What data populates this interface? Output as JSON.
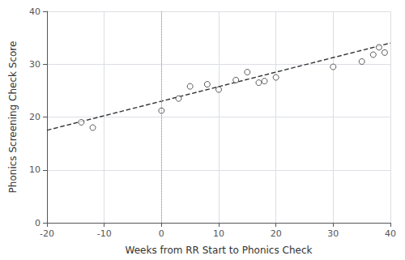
{
  "chart_data": {
    "type": "scatter",
    "xlabel": "Weeks from RR Start to Phonics Check",
    "ylabel": "Phonics Screening Check Score",
    "series": [
      {
        "type": "scatter",
        "marker": "open_circle",
        "color": "#333333",
        "x": [
          -14,
          -12,
          0,
          3,
          5,
          8,
          10,
          13,
          15,
          17,
          18,
          20,
          30,
          35,
          37,
          38,
          39
        ],
        "values": [
          19.0,
          18.0,
          21.2,
          23.5,
          25.8,
          26.2,
          25.2,
          27.0,
          28.5,
          26.5,
          26.8,
          27.5,
          29.5,
          30.5,
          31.8,
          33.2,
          32.2
        ]
      },
      {
        "type": "line",
        "line_style": "dashed",
        "color": "#333333",
        "x": [
          -20,
          40
        ],
        "values": [
          17.5,
          34.0
        ]
      }
    ],
    "vlines": [
      {
        "x": 0,
        "color": "#999999",
        "line_style": "dotted"
      }
    ],
    "xlim": [
      -20,
      40
    ],
    "xticks": [
      -20,
      -10,
      0,
      10,
      20,
      30,
      40
    ],
    "ylim": [
      0,
      40
    ],
    "yticks": [
      0,
      10,
      20,
      30,
      40
    ],
    "grid": true
  }
}
